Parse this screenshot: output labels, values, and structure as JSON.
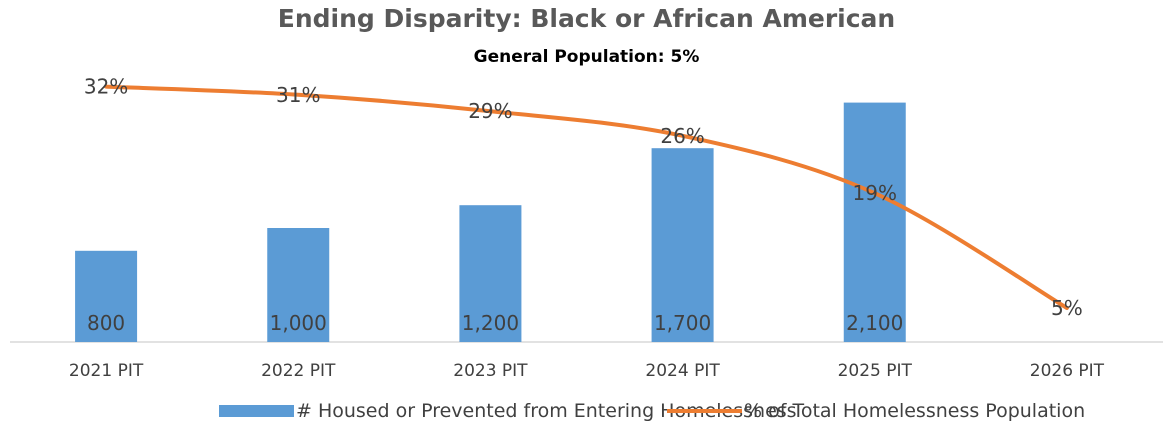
{
  "chart_data": {
    "type": "bar",
    "title": "Ending Disparity: Black or African American",
    "subtitle": "General Population: 5%",
    "categories": [
      "2021 PIT",
      "2022 PIT",
      "2023 PIT",
      "2024 PIT",
      "2025 PIT",
      "2026 PIT"
    ],
    "series": [
      {
        "name": "# Housed or Prevented from Entering Homelessness",
        "type": "bar",
        "color": "#5b9bd5",
        "values": [
          800,
          1000,
          1200,
          1700,
          2100,
          null
        ],
        "labels": [
          "800",
          "1,000",
          "1,200",
          "1,700",
          "2,100",
          ""
        ]
      },
      {
        "name": "% of Total Homelessness Population",
        "type": "line",
        "color": "#ed7d31",
        "values": [
          32,
          31,
          29,
          26,
          19,
          5
        ],
        "labels": [
          "32%",
          "31%",
          "29%",
          "26%",
          "19%",
          "5%"
        ]
      }
    ],
    "legend_position": "bottom",
    "grid": false
  }
}
